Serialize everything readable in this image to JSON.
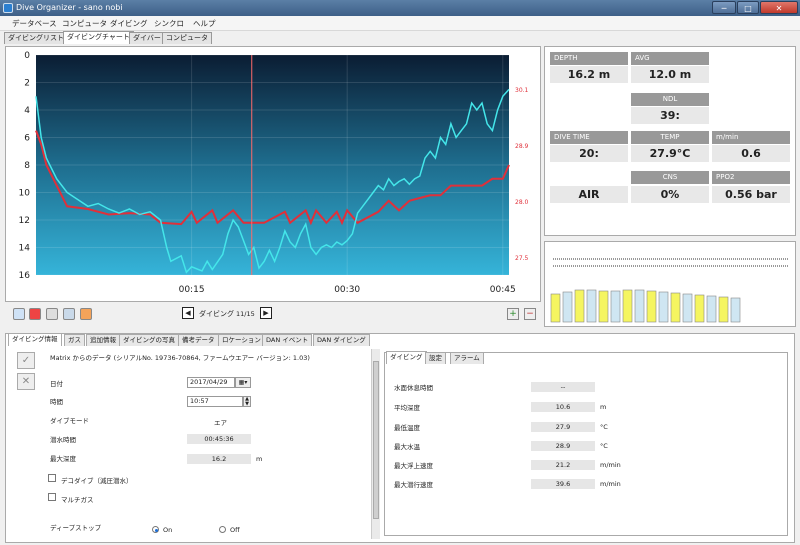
{
  "window": {
    "title": "Dive Organizer - sano nobi",
    "min": "─",
    "max": "□",
    "close": "✕"
  },
  "menu": [
    "データベース",
    "コンピュータ",
    "ダイビング",
    "シンクロ",
    "ヘルプ"
  ],
  "top_tabs": [
    "ダイビングリスト",
    "ダイビングチャート",
    "ダイバー",
    "コンピュータ"
  ],
  "chart_data": {
    "type": "line",
    "y_ticks": [
      "0",
      "2",
      "4",
      "6",
      "8",
      "10",
      "12",
      "14",
      "16"
    ],
    "x_ticks": [
      "00:15",
      "00:30",
      "00:45"
    ],
    "right_ticks": [
      "30.1",
      "28.9",
      "28.0",
      "27.5"
    ],
    "ylim": [
      0,
      16
    ],
    "xlim": [
      0,
      45.6
    ],
    "series": [
      {
        "values": [
          [
            0,
            3
          ],
          [
            0.5,
            6
          ],
          [
            1,
            7.5
          ],
          [
            2,
            9
          ],
          [
            3,
            10
          ],
          [
            4,
            10.5
          ],
          [
            5,
            11
          ],
          [
            6,
            10.8
          ],
          [
            7,
            11.2
          ],
          [
            8,
            11.5
          ],
          [
            9,
            11.2
          ],
          [
            10,
            11.6
          ],
          [
            11,
            11.4
          ],
          [
            12,
            12
          ],
          [
            12.6,
            14
          ],
          [
            13,
            15
          ],
          [
            14,
            14.6
          ],
          [
            14.5,
            15.8
          ],
          [
            15,
            15.4
          ],
          [
            16,
            15.7
          ],
          [
            16.5,
            15
          ],
          [
            17,
            15.6
          ],
          [
            18,
            14.5
          ],
          [
            18.5,
            13
          ],
          [
            19,
            12
          ],
          [
            19.5,
            12.5
          ],
          [
            20,
            13.5
          ],
          [
            20.5,
            14.5
          ],
          [
            21,
            14
          ],
          [
            21.5,
            15.5
          ],
          [
            22,
            15
          ],
          [
            22.5,
            14.2
          ],
          [
            23,
            15
          ],
          [
            23.5,
            14
          ],
          [
            24,
            12.8
          ],
          [
            24.5,
            13.6
          ],
          [
            25,
            14
          ],
          [
            25.5,
            13
          ],
          [
            26,
            12.3
          ],
          [
            26.5,
            14
          ],
          [
            27,
            14.5
          ],
          [
            27.5,
            14
          ],
          [
            28,
            13.8
          ],
          [
            28.5,
            14
          ],
          [
            29,
            13.6
          ],
          [
            29.5,
            13.8
          ],
          [
            30,
            13.5
          ],
          [
            30.5,
            13
          ],
          [
            31,
            11.5
          ],
          [
            31.5,
            11
          ],
          [
            32,
            10.5
          ],
          [
            32.5,
            10
          ],
          [
            33,
            9.5
          ],
          [
            33.5,
            9.8
          ],
          [
            34,
            9
          ],
          [
            34.5,
            9.5
          ],
          [
            35,
            9.2
          ],
          [
            35.5,
            9
          ],
          [
            36,
            9.4
          ],
          [
            36.5,
            9
          ],
          [
            37,
            8.8
          ],
          [
            37.5,
            7.5
          ],
          [
            38,
            7
          ],
          [
            38.5,
            7.5
          ],
          [
            39,
            6
          ],
          [
            39.5,
            6.5
          ],
          [
            40,
            5
          ],
          [
            40.5,
            6
          ],
          [
            41,
            5.5
          ],
          [
            41.5,
            5
          ],
          [
            42,
            3.5
          ],
          [
            42.5,
            4
          ],
          [
            43,
            3.5
          ],
          [
            43.5,
            5
          ],
          [
            44,
            5.5
          ],
          [
            44.5,
            4
          ],
          [
            45,
            3
          ],
          [
            45.6,
            2.5
          ]
        ]
      },
      {
        "values": [
          [
            0,
            5.5
          ],
          [
            0.5,
            6.5
          ],
          [
            1,
            8
          ],
          [
            2,
            9.5
          ],
          [
            3,
            11
          ],
          [
            5,
            11.2
          ],
          [
            7,
            11.6
          ],
          [
            9,
            11.5
          ],
          [
            11,
            11.6
          ],
          [
            12,
            12.2
          ],
          [
            14,
            12.3
          ],
          [
            15,
            11.4
          ],
          [
            15.5,
            12.2
          ],
          [
            17,
            11.3
          ],
          [
            17.5,
            12.2
          ],
          [
            19,
            11.3
          ],
          [
            20,
            12.2
          ],
          [
            22,
            12.2
          ],
          [
            24,
            11.4
          ],
          [
            24.5,
            12.2
          ],
          [
            26,
            11.3
          ],
          [
            26.5,
            12.2
          ],
          [
            27,
            11.3
          ],
          [
            28,
            12.2
          ],
          [
            29,
            11.4
          ],
          [
            29.5,
            12.2
          ],
          [
            30,
            11.3
          ],
          [
            31,
            12.2
          ],
          [
            33,
            11.4
          ],
          [
            34,
            10.6
          ],
          [
            35,
            11.3
          ],
          [
            36,
            10.6
          ],
          [
            37,
            10.4
          ],
          [
            38,
            10.2
          ],
          [
            39,
            10.2
          ],
          [
            40,
            9.5
          ],
          [
            43,
            9.5
          ],
          [
            44,
            9
          ],
          [
            45,
            9
          ],
          [
            45.6,
            8
          ]
        ]
      }
    ],
    "cursor_x": 20.8
  },
  "toolbar": {
    "dive_label": "ダイビング",
    "dive_count": "11/15",
    "prev": "◀",
    "next": "▶",
    "zoom_in": "+",
    "zoom_out": "−"
  },
  "stats": {
    "depth_label": "DEPTH",
    "depth": "16.2 m",
    "avg_label": "AVG",
    "avg": "12.0 m",
    "ndl_label": "NDL",
    "ndl": "39:",
    "dive_time_label": "DIVE TIME",
    "dive_time": "20:",
    "temp_label": "TEMP",
    "temp": "27.9°C",
    "rate_label": "m/min",
    "rate": "0.6",
    "cns_label": "CNS",
    "cns": "0%",
    "ppo2_label": "PPO2",
    "ppo2": "0.56 bar",
    "gas": "AIR"
  },
  "bottom_tabs": [
    "ダイビング情報",
    "ガス",
    "追加情報",
    "ダイビングの写真",
    "備考データ",
    "ロケーション",
    "DAN イベント",
    "DAN ダイビング"
  ],
  "info": {
    "source": "Matrix からのデータ (シリアルNo. 19736-70864, ファームウエアー バージョン: 1.03)",
    "date_label": "日付",
    "date": "2017/04/29",
    "time_label": "時間",
    "time": "10:57",
    "mode_label": "ダイブモード",
    "mode": "エア",
    "duration_label": "潜水時間",
    "duration": "00:45:36",
    "max_depth_label": "最大深度",
    "max_depth": "16.2",
    "max_depth_unit": "m",
    "deco_label": "デコダイブ（減圧潜水）",
    "multigas_label": "マルチガス",
    "deepstop_label": "ディープストップ",
    "on": "On",
    "off": "Off"
  },
  "right_tabs": [
    "ダイビング",
    "設定",
    "アラーム"
  ],
  "right": {
    "surface_label": "水面休息時間",
    "surface": "--",
    "avg_depth_label": "平均深度",
    "avg_depth": "10.6",
    "avg_depth_unit": "m",
    "min_temp_label": "最低温度",
    "min_temp": "27.9",
    "min_temp_unit": "°C",
    "max_temp_label": "最大水温",
    "max_temp": "28.9",
    "max_temp_unit": "°C",
    "max_ascent_label": "最大浮上速度",
    "max_ascent": "21.2",
    "max_ascent_unit": "m/min",
    "max_descent_label": "最大潜行速度",
    "max_descent": "39.6",
    "max_descent_unit": "m/min"
  }
}
